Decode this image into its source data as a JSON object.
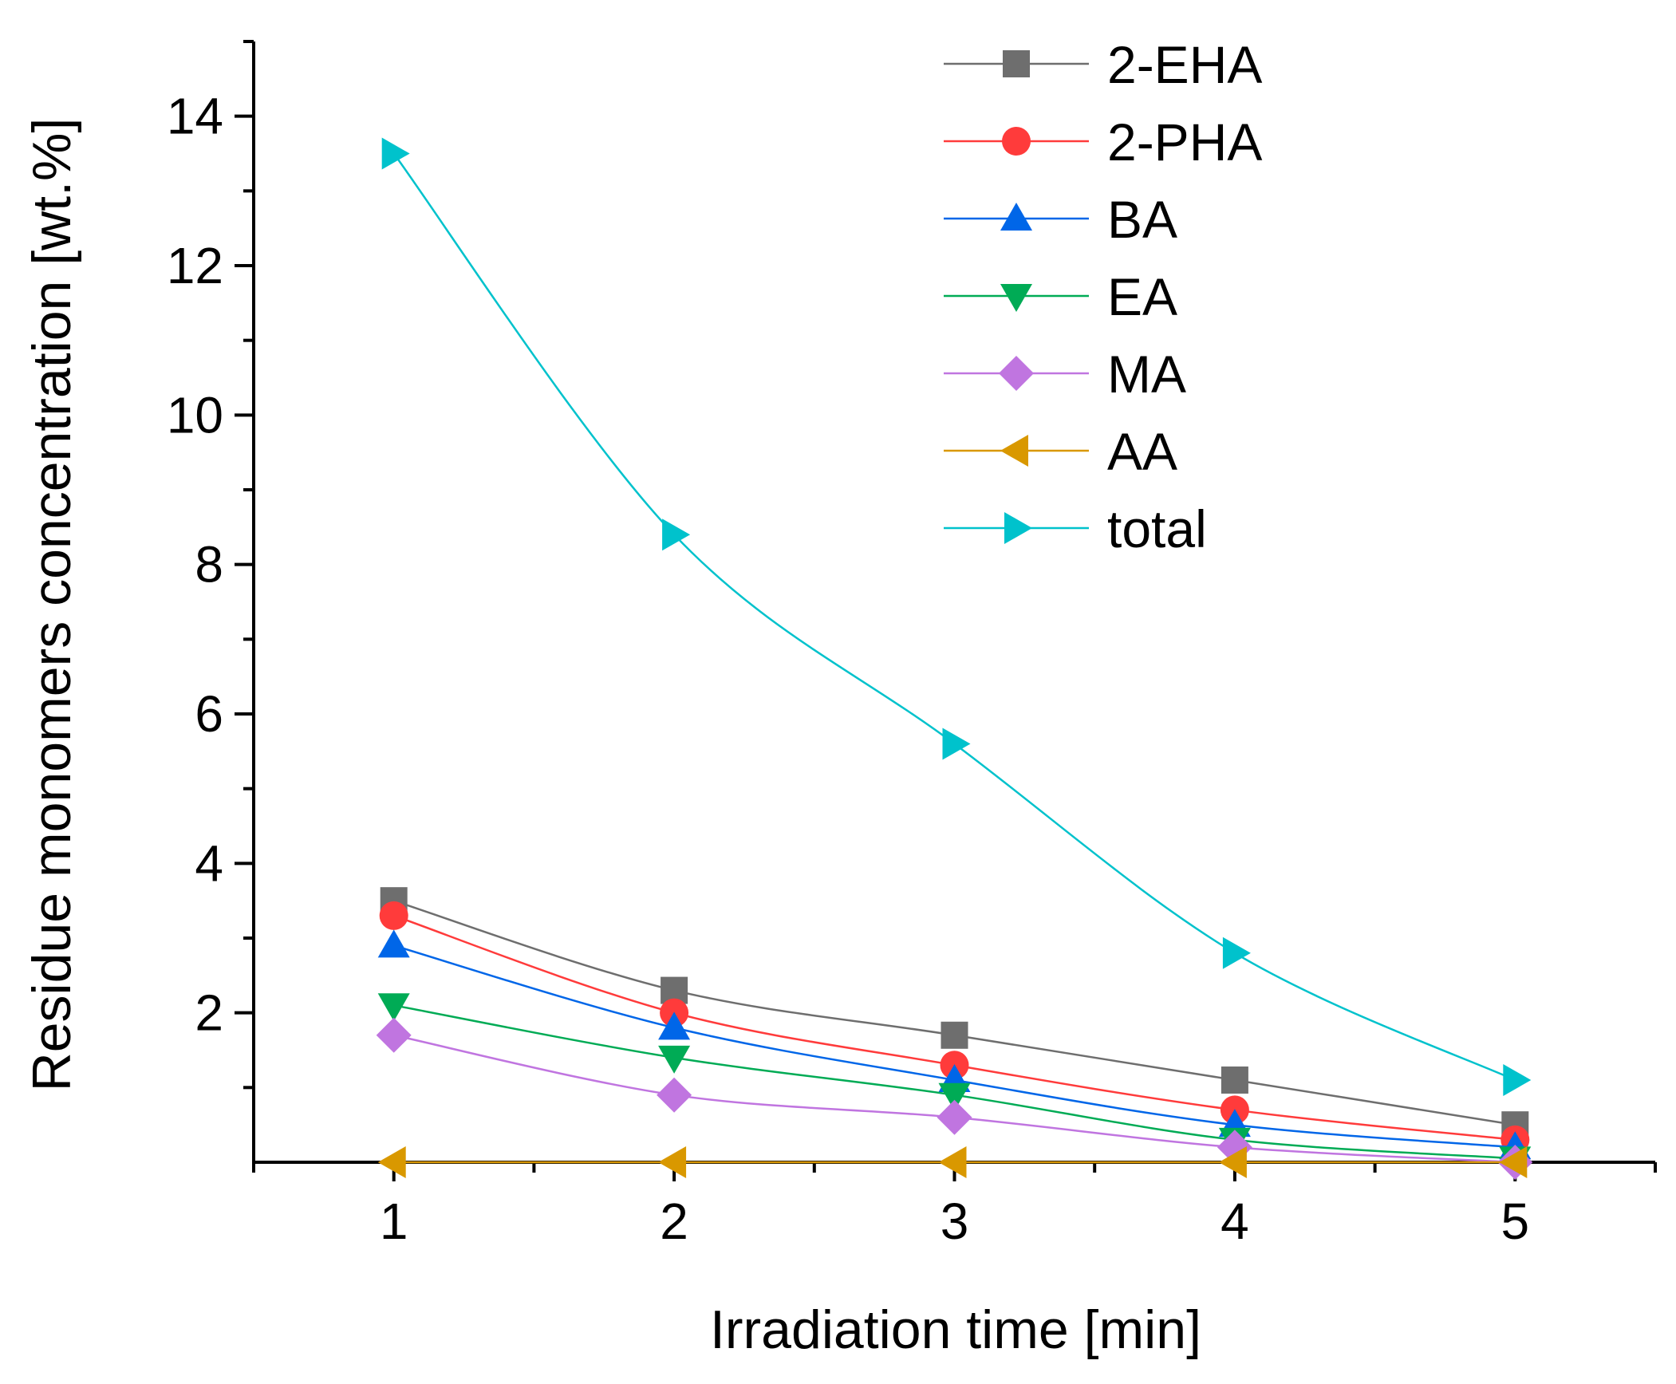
{
  "chart_data": {
    "type": "line",
    "title": "",
    "xlabel": "Irradiation time [min]",
    "ylabel": "Residue monomers concentration [wt.%]",
    "xlim": [
      0.5,
      5.5
    ],
    "ylim": [
      0,
      15
    ],
    "xticks": [
      1,
      2,
      3,
      4,
      5
    ],
    "yticks": [
      2,
      4,
      6,
      8,
      10,
      12,
      14
    ],
    "grid": false,
    "legend_position": "top-right",
    "x": [
      1,
      2,
      3,
      4,
      5
    ],
    "series": [
      {
        "name": "2-EHA",
        "marker": "square",
        "color": "#6e6e6e",
        "values": [
          3.5,
          2.3,
          1.7,
          1.1,
          0.5
        ]
      },
      {
        "name": "2-PHA",
        "marker": "circle",
        "color": "#ff3b3b",
        "values": [
          3.3,
          2.0,
          1.3,
          0.7,
          0.3
        ]
      },
      {
        "name": "BA",
        "marker": "triangle-up",
        "color": "#0066e8",
        "values": [
          2.9,
          1.8,
          1.1,
          0.5,
          0.2
        ]
      },
      {
        "name": "EA",
        "marker": "triangle-down",
        "color": "#00ab55",
        "values": [
          2.1,
          1.4,
          0.9,
          0.3,
          0.05
        ]
      },
      {
        "name": "MA",
        "marker": "diamond",
        "color": "#c075e0",
        "values": [
          1.7,
          0.9,
          0.6,
          0.2,
          0.0
        ]
      },
      {
        "name": "AA",
        "marker": "triangle-left",
        "color": "#d99800",
        "values": [
          0.0,
          0.0,
          0.0,
          0.0,
          0.0
        ]
      },
      {
        "name": "total",
        "marker": "triangle-right",
        "color": "#00c2cc",
        "values": [
          13.5,
          8.4,
          5.6,
          2.8,
          1.1
        ]
      }
    ]
  }
}
